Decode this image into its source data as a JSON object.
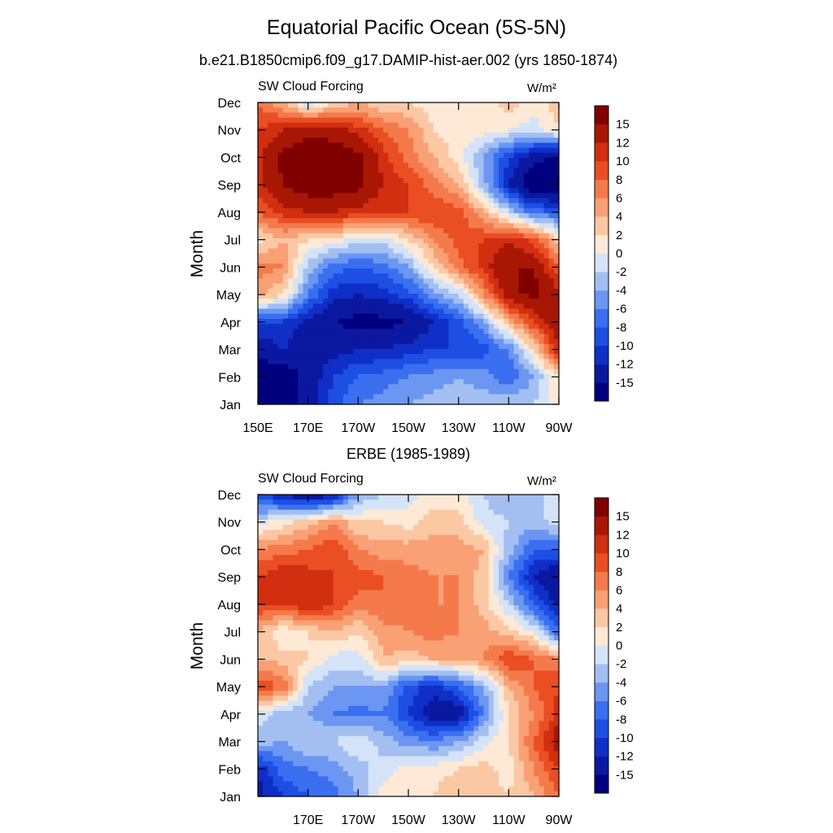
{
  "title": "Equatorial Pacific Ocean (5S-5N)",
  "subtitle": "b.e21.B1850cmip6.f09_g17.DAMIP-hist-aer.002 (yrs 1850-1874)",
  "colorbar": {
    "levels": [
      -18,
      -15,
      -12,
      -10,
      -8,
      -6,
      -4,
      -2,
      0,
      2,
      4,
      6,
      8,
      10,
      12,
      15,
      18
    ],
    "labels": [
      "-15",
      "-12",
      "-10",
      "-8",
      "-6",
      "-4",
      "-2",
      "0",
      "2",
      "4",
      "6",
      "8",
      "10",
      "12",
      "15"
    ],
    "colors": [
      "#00007f",
      "#0a19a0",
      "#0f2fc7",
      "#1c4fe4",
      "#3a6ff0",
      "#6b97f2",
      "#a3bff2",
      "#d4e3f8",
      "#fde9d6",
      "#fcc8a4",
      "#f9a075",
      "#f57a4b",
      "#ea4e23",
      "#d22e10",
      "#a81704",
      "#800000"
    ]
  },
  "chart_data": [
    {
      "type": "heatmap",
      "title": "SW Cloud Forcing",
      "units": "W/m²",
      "ylabel": "Month",
      "x_label_text": [
        "150E",
        "170E",
        "170W",
        "150W",
        "130W",
        "110W",
        "90W"
      ],
      "x_label_values": [
        150,
        170,
        190,
        210,
        230,
        250,
        270
      ],
      "xlim": [
        150,
        270
      ],
      "months": [
        "Jan",
        "Feb",
        "Mar",
        "Apr",
        "May",
        "Jun",
        "Jul",
        "Aug",
        "Sep",
        "Oct",
        "Nov",
        "Dec"
      ],
      "x": [
        150,
        160,
        170,
        180,
        190,
        200,
        210,
        220,
        230,
        240,
        250,
        260,
        270
      ],
      "z": [
        [
          -18,
          -17,
          -14,
          -9,
          -6,
          -5,
          -4,
          -3,
          -3,
          -3,
          -2,
          -2,
          2
        ],
        [
          -18,
          -17,
          -14,
          -10,
          -8,
          -7,
          -6,
          -5,
          -4,
          -5,
          -8,
          -4,
          2
        ],
        [
          -14,
          -12,
          -14,
          -13,
          -12,
          -12,
          -11,
          -10,
          -10,
          -9,
          -6,
          2,
          12
        ],
        [
          -10,
          -10,
          -13,
          -15,
          -16,
          -16,
          -15,
          -12,
          -9,
          -4,
          4,
          10,
          14
        ],
        [
          5,
          2,
          -6,
          -11,
          -12,
          -11,
          -9,
          -5,
          -2,
          6,
          14,
          16,
          13
        ],
        [
          7,
          6,
          -3,
          -7,
          -8,
          -7,
          -4,
          2,
          7,
          11,
          15,
          15,
          8
        ],
        [
          1,
          4,
          2,
          1,
          -1,
          -1,
          2,
          6,
          9,
          10,
          12,
          9,
          3
        ],
        [
          8,
          11,
          12,
          12,
          11,
          10,
          10,
          10,
          9,
          4,
          -2,
          -7,
          -8
        ],
        [
          11,
          15,
          17,
          17,
          16,
          12,
          10,
          7,
          4,
          -3,
          -12,
          -18,
          -18
        ],
        [
          11,
          16,
          18,
          18,
          16,
          11,
          7,
          4,
          1,
          -4,
          -10,
          -14,
          -16
        ],
        [
          10,
          12,
          14,
          13,
          11,
          8,
          6,
          2,
          1,
          1,
          0,
          -1,
          2
        ],
        [
          8,
          4,
          -2,
          2,
          4,
          2,
          2,
          1,
          0,
          1,
          3,
          1,
          3
        ]
      ]
    },
    {
      "type": "heatmap",
      "title": "SW Cloud Forcing",
      "panel_title": "ERBE (1985-1989)",
      "units": "W/m²",
      "ylabel": "Month",
      "x_label_text": [
        "170E",
        "170W",
        "150W",
        "130W",
        "110W",
        "90W"
      ],
      "x_label_values": [
        170,
        190,
        210,
        230,
        250,
        270
      ],
      "xlim": [
        150,
        270
      ],
      "months": [
        "Jan",
        "Feb",
        "Mar",
        "Apr",
        "May",
        "Jun",
        "Jul",
        "Aug",
        "Sep",
        "Oct",
        "Nov",
        "Dec"
      ],
      "x": [
        150,
        160,
        170,
        180,
        190,
        200,
        210,
        220,
        230,
        240,
        250,
        260,
        270
      ],
      "z": [
        [
          -13,
          -10,
          -8,
          -7,
          -4,
          1,
          2,
          2,
          4,
          3,
          2,
          4,
          8
        ],
        [
          -12,
          -7,
          -6,
          -5,
          -3,
          -1,
          1,
          1,
          2,
          3,
          1,
          6,
          10
        ],
        [
          -3,
          -4,
          -2,
          -2,
          0,
          -3,
          -5,
          -6,
          -4,
          -1,
          2,
          8,
          14
        ],
        [
          -1,
          -3,
          -4,
          -6,
          -7,
          -6,
          -10,
          -14,
          -14,
          -6,
          2,
          6,
          11
        ],
        [
          10,
          8,
          -2,
          -4,
          -4,
          -4,
          -9,
          -11,
          -8,
          -4,
          4,
          8,
          10
        ],
        [
          4,
          3,
          2,
          -1,
          -1,
          4,
          3,
          4,
          4,
          6,
          10,
          8,
          6
        ],
        [
          4,
          0,
          2,
          4,
          2,
          5,
          6,
          7,
          6,
          5,
          3,
          0,
          -8
        ],
        [
          10,
          10,
          12,
          10,
          7,
          8,
          7,
          6,
          6,
          3,
          -2,
          -8,
          -13
        ],
        [
          10,
          12,
          11,
          10,
          9,
          8,
          7,
          6,
          6,
          3,
          -6,
          -12,
          -15
        ],
        [
          6,
          7,
          8,
          10,
          6,
          5,
          5,
          5,
          5,
          4,
          -3,
          -8,
          -8
        ],
        [
          -1,
          1,
          3,
          6,
          2,
          2,
          1,
          3,
          3,
          -1,
          -2,
          -3,
          -1
        ],
        [
          -10,
          -12,
          -15,
          -13,
          -4,
          -2,
          -1,
          1,
          1,
          -2,
          -4,
          -3,
          0
        ]
      ]
    }
  ]
}
